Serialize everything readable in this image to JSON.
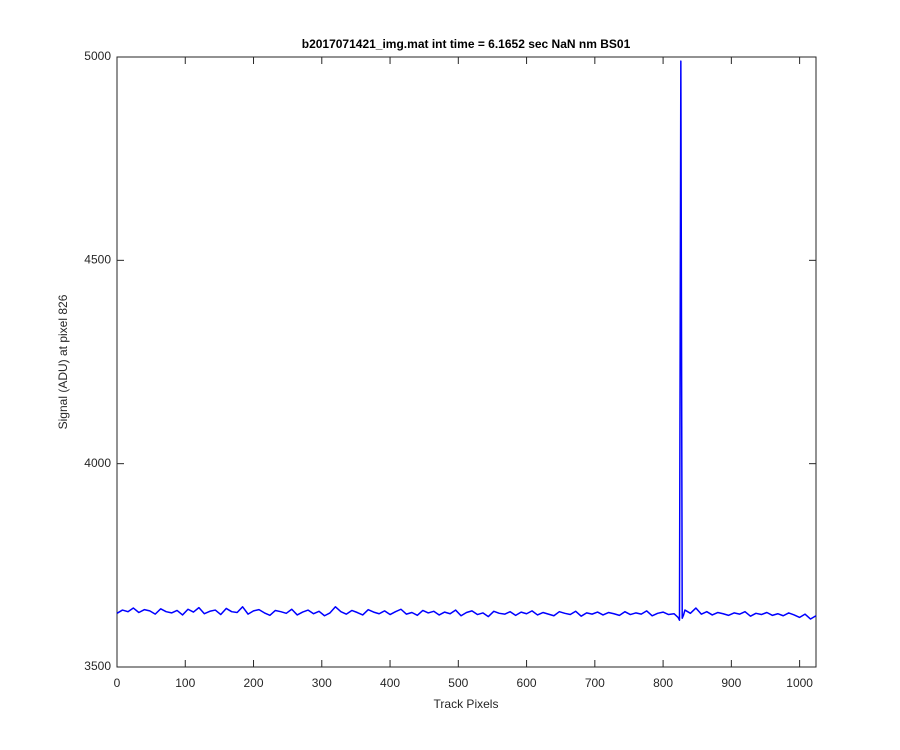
{
  "chart_data": {
    "type": "line",
    "title": "b2017071421_img.mat int time = 6.1652 sec  NaN nm BS01",
    "x_label": "Track Pixels",
    "y_label": "Signal (ADU) at pixel 826",
    "x": [
      0,
      8,
      16,
      24,
      32,
      40,
      48,
      56,
      64,
      72,
      80,
      88,
      96,
      104,
      112,
      120,
      128,
      136,
      144,
      152,
      160,
      168,
      176,
      184,
      192,
      200,
      208,
      216,
      224,
      232,
      240,
      248,
      256,
      264,
      272,
      280,
      288,
      296,
      304,
      312,
      320,
      328,
      336,
      344,
      352,
      360,
      368,
      376,
      384,
      392,
      400,
      408,
      416,
      424,
      432,
      440,
      448,
      456,
      464,
      472,
      480,
      488,
      496,
      504,
      512,
      520,
      528,
      536,
      544,
      552,
      560,
      568,
      576,
      584,
      592,
      600,
      608,
      616,
      624,
      632,
      640,
      648,
      656,
      664,
      672,
      680,
      688,
      696,
      704,
      712,
      720,
      728,
      736,
      744,
      752,
      760,
      768,
      776,
      784,
      792,
      800,
      808,
      816,
      822,
      824,
      826,
      828,
      830,
      832,
      840,
      848,
      856,
      864,
      872,
      880,
      888,
      896,
      904,
      912,
      920,
      928,
      936,
      944,
      952,
      960,
      968,
      976,
      984,
      992,
      1000,
      1008,
      1016,
      1024
    ],
    "series": [
      {
        "name": "signal",
        "color": "#0000ff",
        "values": [
          3632,
          3640,
          3636,
          3645,
          3634,
          3641,
          3638,
          3630,
          3643,
          3636,
          3633,
          3639,
          3628,
          3642,
          3635,
          3646,
          3631,
          3637,
          3640,
          3629,
          3644,
          3636,
          3634,
          3648,
          3630,
          3638,
          3641,
          3633,
          3627,
          3639,
          3636,
          3632,
          3642,
          3628,
          3635,
          3640,
          3631,
          3637,
          3626,
          3633,
          3648,
          3636,
          3630,
          3639,
          3634,
          3628,
          3641,
          3635,
          3631,
          3638,
          3629,
          3636,
          3642,
          3630,
          3634,
          3627,
          3639,
          3633,
          3637,
          3628,
          3635,
          3631,
          3640,
          3626,
          3634,
          3638,
          3629,
          3633,
          3624,
          3637,
          3632,
          3630,
          3636,
          3627,
          3635,
          3631,
          3638,
          3628,
          3634,
          3630,
          3626,
          3636,
          3632,
          3629,
          3637,
          3625,
          3633,
          3630,
          3635,
          3628,
          3634,
          3631,
          3627,
          3636,
          3629,
          3633,
          3630,
          3638,
          3626,
          3632,
          3635,
          3629,
          3631,
          3622,
          3615,
          4990,
          3620,
          3628,
          3640,
          3632,
          3645,
          3630,
          3636,
          3628,
          3634,
          3631,
          3627,
          3633,
          3630,
          3636,
          3625,
          3632,
          3629,
          3634,
          3627,
          3631,
          3626,
          3633,
          3628,
          3622,
          3630,
          3618,
          3626
        ]
      }
    ],
    "xlim": [
      0,
      1024
    ],
    "ylim": [
      3500,
      5000
    ],
    "xticks": [
      0,
      100,
      200,
      300,
      400,
      500,
      600,
      700,
      800,
      900,
      1000
    ],
    "yticks": [
      3500,
      4000,
      4500,
      5000
    ],
    "grid": false
  }
}
